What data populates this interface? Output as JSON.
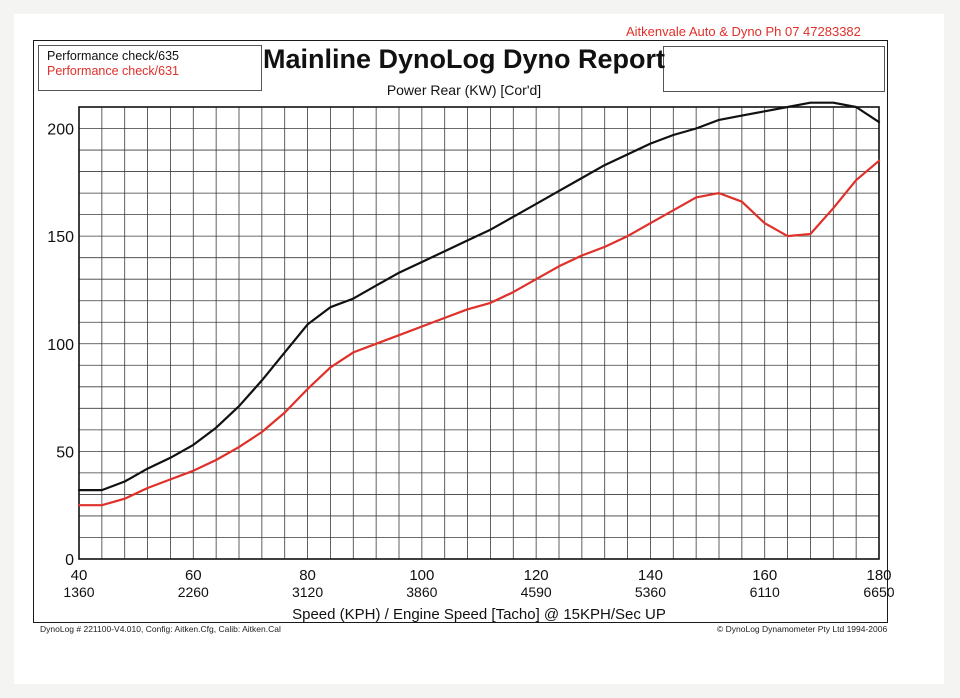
{
  "header": {
    "shop": "Aitkenvale Auto & Dyno  Ph 07 47283382",
    "title": "Mainline DynoLog Dyno Report",
    "subtitle": "Power Rear (KW) [Cor'd]"
  },
  "legend": {
    "items": [
      {
        "label": "Performance check/635",
        "color": "#111111"
      },
      {
        "label": "Performance check/631",
        "color": "#e0302a"
      }
    ]
  },
  "footer": {
    "left": "DynoLog # 221100-V4.010, Config: Aitken.Cfg, Calib: Aitken.Cal",
    "right": "© DynoLog Dynamometer Pty Ltd 1994-2006"
  },
  "chart_data": {
    "type": "line",
    "xlabel": "Speed (KPH) / Engine Speed [Tacho] @ 15KPH/Sec UP",
    "ylabel": "",
    "xlim": [
      40,
      180
    ],
    "ylim": [
      0,
      210
    ],
    "x_ticks": [
      40,
      60,
      80,
      100,
      120,
      140,
      160,
      180
    ],
    "x_tick_rpm": [
      "1360",
      "2260",
      "3120",
      "3860",
      "4590",
      "5360",
      "6110",
      "6650"
    ],
    "y_ticks": [
      0,
      50,
      100,
      150,
      200
    ],
    "grid": true,
    "legend_position": "top-left",
    "series": [
      {
        "name": "Performance check/635",
        "color": "#111111",
        "x": [
          40,
          44,
          48,
          52,
          56,
          60,
          64,
          68,
          72,
          76,
          80,
          84,
          88,
          92,
          96,
          100,
          104,
          108,
          112,
          116,
          120,
          124,
          128,
          132,
          136,
          140,
          144,
          148,
          152,
          156,
          160,
          164,
          168,
          172,
          176,
          180
        ],
        "y": [
          32,
          32,
          36,
          42,
          47,
          53,
          61,
          71,
          83,
          96,
          109,
          117,
          121,
          127,
          133,
          138,
          143,
          148,
          153,
          159,
          165,
          171,
          177,
          183,
          188,
          193,
          197,
          200,
          204,
          206,
          208,
          210,
          212,
          212,
          210,
          203
        ]
      },
      {
        "name": "Performance check/631",
        "color": "#e0302a",
        "x": [
          40,
          44,
          48,
          52,
          56,
          60,
          64,
          68,
          72,
          76,
          80,
          84,
          88,
          92,
          96,
          100,
          104,
          108,
          112,
          116,
          120,
          124,
          128,
          132,
          136,
          140,
          144,
          148,
          152,
          156,
          160,
          164,
          168,
          172,
          176,
          180
        ],
        "y": [
          25,
          25,
          28,
          33,
          37,
          41,
          46,
          52,
          59,
          68,
          79,
          89,
          96,
          100,
          104,
          108,
          112,
          116,
          119,
          124,
          130,
          136,
          141,
          145,
          150,
          156,
          162,
          168,
          170,
          166,
          156,
          150,
          151,
          163,
          176,
          185
        ]
      }
    ]
  }
}
